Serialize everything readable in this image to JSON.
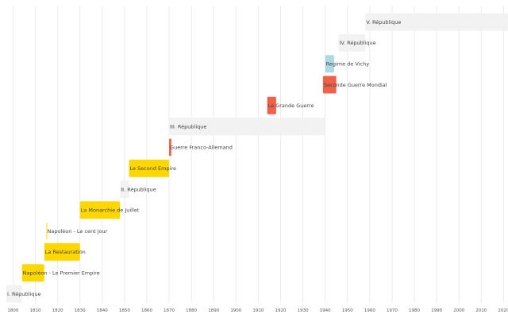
{
  "chart_data": {
    "type": "timeline",
    "title": "",
    "xlabel": "",
    "ylabel": "",
    "xlim": [
      1797,
      2022
    ],
    "x_ticks": [
      1800,
      1810,
      1820,
      1830,
      1840,
      1850,
      1860,
      1870,
      1880,
      1890,
      1900,
      1910,
      1920,
      1930,
      1940,
      1950,
      1960,
      1970,
      1980,
      1990,
      2000,
      2010,
      2020
    ],
    "grid": true,
    "events": [
      {
        "label": "I. République",
        "start": 1797,
        "end": 1804,
        "color": "#f2f2f2"
      },
      {
        "label": "Napoléon - Le Premier Empire",
        "start": 1804,
        "end": 1814,
        "color": "#ffd700"
      },
      {
        "label": "La Restauration",
        "start": 1814,
        "end": 1830,
        "color": "#ffd700"
      },
      {
        "label": "Napoléon - Le cent jour",
        "start": 1815,
        "end": 1815.3,
        "color": "#ffd700"
      },
      {
        "label": "La Monarchie de Juillet",
        "start": 1830,
        "end": 1848,
        "color": "#ffd700"
      },
      {
        "label": "II. République",
        "start": 1848,
        "end": 1852,
        "color": "#f2f2f2"
      },
      {
        "label": "Le Second Empire",
        "start": 1852,
        "end": 1870,
        "color": "#ffd700"
      },
      {
        "label": "Guerre Franco-Allemand",
        "start": 1870,
        "end": 1871,
        "color": "#f0614a"
      },
      {
        "label": "III. République",
        "start": 1870,
        "end": 1940,
        "color": "#f2f2f2"
      },
      {
        "label": "Le Grande Guerre",
        "start": 1914,
        "end": 1918,
        "color": "#f0614a"
      },
      {
        "label": "Seconde Guerre Mondial",
        "start": 1939,
        "end": 1945,
        "color": "#f0614a"
      },
      {
        "label": "Regime de Vichy",
        "start": 1940,
        "end": 1944,
        "color": "#add8e6"
      },
      {
        "label": "IV. République",
        "start": 1946,
        "end": 1958,
        "color": "#f2f2f2"
      },
      {
        "label": "V. République",
        "start": 1958,
        "end": 2022,
        "color": "#f2f2f2"
      }
    ]
  }
}
